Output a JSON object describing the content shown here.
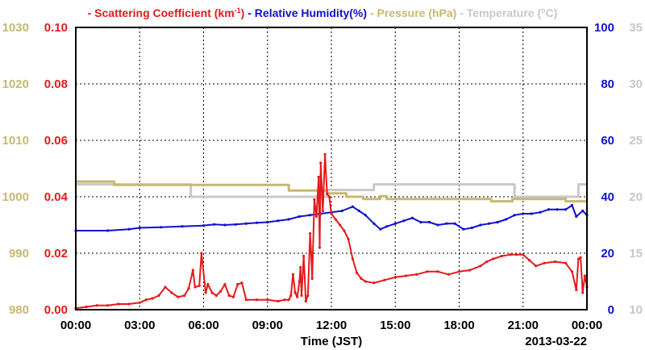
{
  "chart_data": {
    "type": "line",
    "legend_position": "top",
    "grid": true,
    "colors": {
      "scattering": "#e41a1c",
      "humidity": "#1010d0",
      "pressure": "#c8b870",
      "temperature": "#c8c8c8",
      "axis": "#000000"
    },
    "legend": [
      {
        "name": "Scattering Coefficient (km",
        "sup": "-1",
        "suffix": ")",
        "color": "#e41a1c"
      },
      {
        "name": "Relative Humidity(%)",
        "sup": "",
        "suffix": "",
        "color": "#1010d0"
      },
      {
        "name": "Pressure (hPa)",
        "sup": "",
        "suffix": "",
        "color": "#c8b870"
      },
      {
        "name": "Temperature (",
        "sup": "o",
        "suffix": "C)",
        "color": "#c8c8c8"
      }
    ],
    "xlabel": "Time (JST)",
    "date_label": "2013-03-22",
    "xlim": [
      0,
      24
    ],
    "xticks": [
      0,
      3,
      6,
      9,
      12,
      15,
      18,
      21,
      24
    ],
    "xtick_labels": [
      "00:00",
      "03:00",
      "06:00",
      "09:00",
      "12:00",
      "15:00",
      "18:00",
      "21:00",
      "00:00"
    ],
    "axes": {
      "pressure": {
        "range": [
          980,
          1030
        ],
        "ticks": [
          "980",
          "990",
          "1000",
          "1010",
          "1020",
          "1030"
        ],
        "color": "#c8b870"
      },
      "scattering": {
        "range": [
          0,
          0.1
        ],
        "ticks": [
          "0.00",
          "0.02",
          "0.04",
          "0.06",
          "0.08",
          "0.10"
        ],
        "color": "#e41a1c"
      },
      "humidity": {
        "range": [
          0,
          100
        ],
        "ticks": [
          "0",
          "20",
          "40",
          "60",
          "80",
          "100"
        ],
        "color": "#1010d0"
      },
      "temperature": {
        "range": [
          10,
          35
        ],
        "ticks": [
          "10",
          "15",
          "20",
          "25",
          "30",
          "35"
        ],
        "color": "#c8c8c8"
      }
    },
    "series": [
      {
        "key": "temperature",
        "name": "Temperature",
        "x": [
          0,
          5.4,
          5.4,
          11.8,
          11.8,
          14.0,
          14.0,
          20.6,
          20.6,
          23.6,
          23.6,
          24
        ],
        "y": [
          21.1,
          21.1,
          20.0,
          20.0,
          20.6,
          20.6,
          21.1,
          21.1,
          20.0,
          20.0,
          21.1,
          21.1
        ]
      },
      {
        "key": "pressure",
        "name": "Pressure",
        "x": [
          0,
          1.8,
          1.8,
          10.0,
          10.0,
          11.8,
          11.8,
          12.7,
          12.7,
          13.5,
          13.5,
          14.3,
          14.3,
          14.6,
          14.6,
          15.2,
          15.2,
          19.5,
          19.5,
          20.5,
          20.5,
          21.2,
          21.2,
          23.0,
          23.0,
          24
        ],
        "y": [
          1002.7,
          1002.7,
          1002.1,
          1002.1,
          1001.1,
          1001.1,
          1000.6,
          1000.6,
          1000.0,
          1000.0,
          999.6,
          999.6,
          1000.1,
          1000.1,
          999.6,
          999.6,
          999.6,
          999.6,
          999.2,
          999.2,
          999.6,
          999.6,
          999.6,
          999.6,
          999.2,
          999.2
        ]
      },
      {
        "key": "humidity",
        "name": "Relative Humidity",
        "x": [
          0,
          1.5,
          2.5,
          3.0,
          4.0,
          5.0,
          6.0,
          6.5,
          7.0,
          7.5,
          8.0,
          8.5,
          9.0,
          9.5,
          10.0,
          10.5,
          11.0,
          11.5,
          12.0,
          12.5,
          13.0,
          13.3,
          13.6,
          14.0,
          14.3,
          14.6,
          15.0,
          15.4,
          15.8,
          16.2,
          16.6,
          17.0,
          17.4,
          17.8,
          18.2,
          18.6,
          19.0,
          19.4,
          19.8,
          20.2,
          20.6,
          21.0,
          21.4,
          21.8,
          22.2,
          22.6,
          23.0,
          23.3,
          23.5,
          23.8,
          24
        ],
        "y": [
          28,
          28,
          28.5,
          29,
          29.2,
          29.5,
          29.8,
          30.2,
          30,
          30.2,
          30.5,
          30.8,
          31,
          31.5,
          32,
          33,
          33.5,
          34,
          34.5,
          35,
          36.5,
          35,
          33.5,
          30.5,
          28.5,
          29.5,
          30.5,
          31.5,
          32.5,
          31,
          31,
          30,
          30.5,
          30.5,
          28.5,
          29,
          30,
          30.5,
          31,
          32,
          33.5,
          34,
          34,
          34.5,
          35.5,
          35.5,
          35.5,
          37,
          33,
          35,
          33.5
        ]
      },
      {
        "key": "scattering",
        "name": "Scattering Coefficient",
        "x": [
          0,
          0.5,
          1.0,
          1.5,
          2.0,
          2.5,
          3.0,
          3.3,
          3.6,
          3.9,
          4.2,
          4.5,
          4.8,
          5.1,
          5.3,
          5.5,
          5.6,
          5.8,
          5.9,
          6.1,
          6.2,
          6.4,
          6.6,
          6.8,
          7.0,
          7.2,
          7.4,
          7.6,
          7.8,
          8.0,
          8.5,
          9.0,
          9.5,
          9.8,
          10.0,
          10.1,
          10.2,
          10.3,
          10.4,
          10.5,
          10.55,
          10.6,
          10.7,
          10.8,
          10.9,
          11.0,
          11.05,
          11.1,
          11.2,
          11.3,
          11.4,
          11.45,
          11.5,
          11.6,
          11.7,
          11.8,
          11.9,
          12.0,
          12.2,
          12.4,
          12.6,
          12.8,
          13.0,
          13.2,
          13.4,
          13.6,
          14.0,
          14.5,
          15.0,
          15.5,
          16.0,
          16.5,
          17.0,
          17.5,
          18.0,
          18.5,
          19.0,
          19.3,
          19.6,
          20.0,
          20.4,
          20.7,
          21.0,
          21.3,
          21.6,
          22.0,
          22.5,
          23.0,
          23.3,
          23.5,
          23.6,
          23.7,
          23.8,
          23.9,
          24
        ],
        "y": [
          0.0005,
          0.001,
          0.0015,
          0.0015,
          0.002,
          0.002,
          0.0025,
          0.0035,
          0.004,
          0.005,
          0.008,
          0.006,
          0.0045,
          0.005,
          0.0075,
          0.014,
          0.008,
          0.0085,
          0.02,
          0.006,
          0.009,
          0.006,
          0.005,
          0.0065,
          0.009,
          0.005,
          0.0045,
          0.009,
          0.0095,
          0.0035,
          0.0035,
          0.0035,
          0.003,
          0.0035,
          0.0035,
          0.005,
          0.0125,
          0.006,
          0.0045,
          0.01,
          0.015,
          0.005,
          0.019,
          0.003,
          0.005,
          0.027,
          0.02,
          0.011,
          0.039,
          0.033,
          0.047,
          0.022,
          0.052,
          0.035,
          0.055,
          0.041,
          0.04,
          0.034,
          0.032,
          0.03,
          0.028,
          0.025,
          0.018,
          0.013,
          0.011,
          0.01,
          0.0095,
          0.0105,
          0.0115,
          0.012,
          0.0125,
          0.0135,
          0.0135,
          0.0125,
          0.0135,
          0.014,
          0.0155,
          0.017,
          0.018,
          0.019,
          0.0195,
          0.0195,
          0.0195,
          0.0175,
          0.0155,
          0.0165,
          0.017,
          0.0165,
          0.0135,
          0.007,
          0.018,
          0.0185,
          0.006,
          0.012,
          0.008
        ]
      }
    ]
  }
}
